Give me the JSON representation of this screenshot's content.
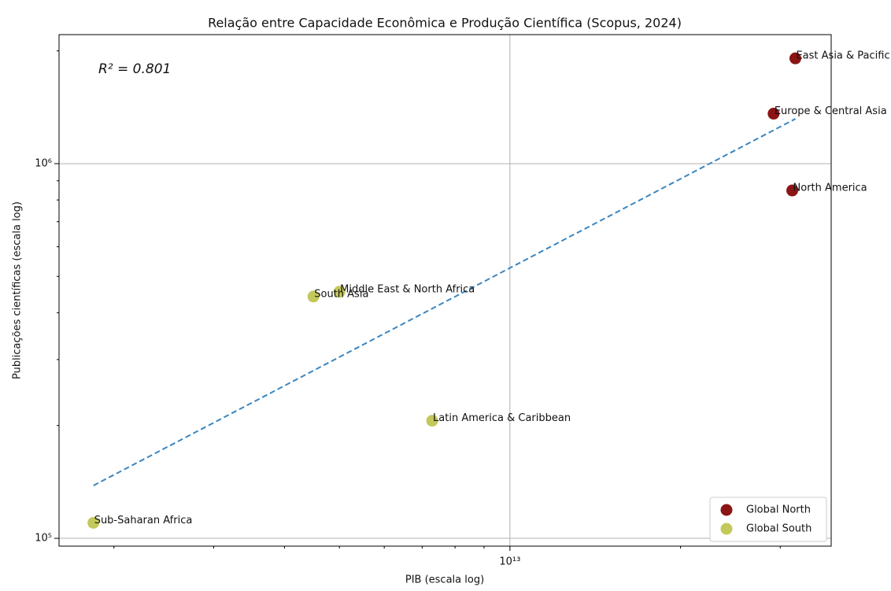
{
  "chart_data": {
    "type": "scatter",
    "title": "Relação entre Capacidade Econômica e Produção Científica (Scopus, 2024)",
    "xlabel": "PIB (escala log)",
    "ylabel": "Publicações científicas (escala log)",
    "annotation": "R² = 0.801",
    "xscale": "log",
    "yscale": "log",
    "xlim": [
      1600000000000.0,
      36900000000000.0
    ],
    "ylim": [
      95300,
      2210000
    ],
    "xticks": [
      {
        "value": 10000000000000.0,
        "label": "10¹³"
      }
    ],
    "yticks": [
      {
        "value": 100000,
        "label": "10⁵"
      },
      {
        "value": 1000000,
        "label": "10⁶"
      }
    ],
    "xminorticks": [
      2000000000000.0,
      3000000000000.0,
      4000000000000.0,
      5000000000000.0,
      6000000000000.0,
      7000000000000.0,
      8000000000000.0,
      9000000000000.0,
      20000000000000.0,
      30000000000000.0
    ],
    "yminorticks": [
      200000,
      300000,
      400000,
      500000,
      600000,
      700000,
      800000,
      900000,
      2000000
    ],
    "grid": true,
    "legend": "lower right",
    "series": [
      {
        "name": "Global North",
        "color": "#8b1414",
        "labels": [
          "East Asia & Pacific",
          "Europe & Central Asia",
          "North America"
        ],
        "x": [
          31900000000000.0,
          29200000000000.0,
          31500000000000.0
        ],
        "values": [
          1910000,
          1360000,
          848000
        ]
      },
      {
        "name": "Global South",
        "color": "#c3c85a",
        "labels": [
          "Middle East & North Africa",
          "South Asia",
          "Latin America & Caribbean",
          "Sub-Saharan Africa"
        ],
        "x": [
          5000000000000.0,
          4500000000000.0,
          7290000000000.0,
          1840000000000.0
        ],
        "values": [
          455000,
          442000,
          206000,
          110000
        ]
      }
    ],
    "trendline": {
      "color": "#3a86c0",
      "x": [
        1840000000000.0,
        31900000000000.0
      ],
      "values": [
        138300,
        1317000
      ]
    }
  }
}
